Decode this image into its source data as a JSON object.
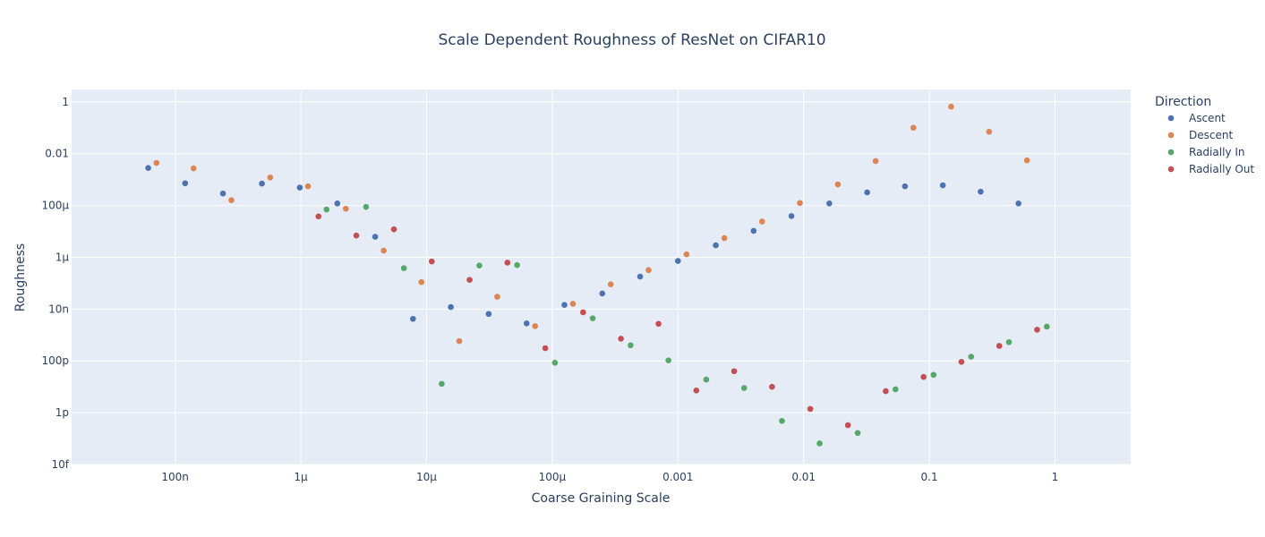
{
  "chart_data": {
    "type": "scatter",
    "title": "Scale Dependent Roughness of ResNet on CIFAR10",
    "xlabel": "Coarse Graining Scale",
    "ylabel": "Roughness",
    "xscale": "log",
    "yscale": "log",
    "xlim": [
      1.5e-08,
      4
    ],
    "ylim": [
      1e-14,
      3
    ],
    "x_ticks": [
      {
        "value": 1e-07,
        "label": "100n"
      },
      {
        "value": 1e-06,
        "label": "1µ"
      },
      {
        "value": 1e-05,
        "label": "10µ"
      },
      {
        "value": 0.0001,
        "label": "100µ"
      },
      {
        "value": 0.001,
        "label": "0.001"
      },
      {
        "value": 0.01,
        "label": "0.01"
      },
      {
        "value": 0.1,
        "label": "0.1"
      },
      {
        "value": 1,
        "label": "1"
      }
    ],
    "y_ticks": [
      {
        "value": 1,
        "label": "1"
      },
      {
        "value": 0.01,
        "label": "0.01"
      },
      {
        "value": 0.0001,
        "label": "100µ"
      },
      {
        "value": 1e-06,
        "label": "1µ"
      },
      {
        "value": 1e-08,
        "label": "10n"
      },
      {
        "value": 1e-10,
        "label": "100p"
      },
      {
        "value": 1e-12,
        "label": "1p"
      },
      {
        "value": 1e-14,
        "label": "10f"
      }
    ],
    "grid": true,
    "legend_title": "Direction",
    "legend_position": "right",
    "series": [
      {
        "name": "Ascent",
        "color": "#4c72b0",
        "points": [
          [
            6.1e-08,
            0.0028
          ],
          [
            1.2e-07,
            0.00072
          ],
          [
            2.4e-07,
            0.00029
          ],
          [
            4.9e-07,
            0.0007
          ],
          [
            9.8e-07,
            0.00049
          ],
          [
            1.95e-06,
            0.00012
          ],
          [
            3.9e-06,
            6.2e-06
          ],
          [
            7.8e-06,
            4.2e-09
          ],
          [
            1.56e-05,
            1.2e-08
          ],
          [
            3.12e-05,
            6.5e-09
          ],
          [
            6.25e-05,
            2.8e-09
          ],
          [
            0.000125,
            1.45e-08
          ],
          [
            0.00025,
            4e-08
          ],
          [
            0.0005,
            1.8e-07
          ],
          [
            0.001,
            7.2e-07
          ],
          [
            0.002,
            2.9e-06
          ],
          [
            0.004,
            1.05e-05
          ],
          [
            0.008,
            3.9e-05
          ],
          [
            0.016,
            0.00012
          ],
          [
            0.032,
            0.00032
          ],
          [
            0.064,
            0.00055
          ],
          [
            0.128,
            0.0006
          ],
          [
            0.256,
            0.00034
          ],
          [
            0.512,
            0.00012
          ]
        ]
      },
      {
        "name": "Descent",
        "color": "#dd8452",
        "points": [
          [
            7.1e-08,
            0.0044
          ],
          [
            1.4e-07,
            0.0027
          ],
          [
            2.8e-07,
            0.00016
          ],
          [
            5.7e-07,
            0.0012
          ],
          [
            1.14e-06,
            0.00055
          ],
          [
            2.28e-06,
            7.5e-05
          ],
          [
            4.56e-06,
            1.8e-06
          ],
          [
            9.1e-06,
            1.1e-07
          ],
          [
            1.82e-05,
            5.8e-10
          ],
          [
            3.65e-05,
            3e-08
          ],
          [
            7.3e-05,
            2.2e-09
          ],
          [
            0.000146,
            1.6e-08
          ],
          [
            0.000292,
            9e-08
          ],
          [
            0.000584,
            3.2e-07
          ],
          [
            0.00117,
            1.3e-06
          ],
          [
            0.00234,
            5.5e-06
          ],
          [
            0.00467,
            2.4e-05
          ],
          [
            0.00934,
            0.000125
          ],
          [
            0.0187,
            0.00065
          ],
          [
            0.0374,
            0.0052
          ],
          [
            0.0747,
            0.1
          ],
          [
            0.149,
            0.65
          ],
          [
            0.299,
            0.07
          ],
          [
            0.598,
            0.0055
          ]
        ]
      },
      {
        "name": "Radially In",
        "color": "#55a868",
        "points": [
          [
            1.6e-06,
            7e-05
          ],
          [
            3.3e-06,
            8.8e-05
          ],
          [
            6.6e-06,
            3.8e-07
          ],
          [
            1.32e-05,
            1.3e-11
          ],
          [
            2.63e-05,
            4.8e-07
          ],
          [
            5.25e-05,
            5e-07
          ],
          [
            0.000105,
            8.5e-11
          ],
          [
            0.00021,
            4.4e-09
          ],
          [
            0.00042,
            4e-10
          ],
          [
            0.00084,
            1.05e-10
          ],
          [
            0.00168,
            1.9e-11
          ],
          [
            0.00336,
            9e-12
          ],
          [
            0.00672,
            4.8e-13
          ],
          [
            0.0134,
            6.5e-14
          ],
          [
            0.0269,
            1.65e-13
          ],
          [
            0.0538,
            8e-12
          ],
          [
            0.108,
            2.9e-11
          ],
          [
            0.215,
            1.45e-10
          ],
          [
            0.43,
            5.3e-10
          ],
          [
            0.86,
            2.1e-09
          ]
        ]
      },
      {
        "name": "Radially Out",
        "color": "#c44e52",
        "points": [
          [
            1.38e-06,
            3.8e-05
          ],
          [
            2.76e-06,
            6.9e-06
          ],
          [
            5.5e-06,
            1.2e-05
          ],
          [
            1.1e-05,
            6.9e-07
          ],
          [
            2.2e-05,
            1.35e-07
          ],
          [
            4.4e-05,
            6.2e-07
          ],
          [
            8.8e-05,
            3.1e-10
          ],
          [
            0.000176,
            7.5e-09
          ],
          [
            0.000352,
            7.2e-10
          ],
          [
            0.0007,
            2.7e-09
          ],
          [
            0.0014,
            7.2e-12
          ],
          [
            0.0028,
            4e-11
          ],
          [
            0.0056,
            1e-11
          ],
          [
            0.0113,
            1.4e-12
          ],
          [
            0.0225,
            3.3e-13
          ],
          [
            0.045,
            6.8e-12
          ],
          [
            0.09,
            2.4e-11
          ],
          [
            0.18,
            9.2e-11
          ],
          [
            0.36,
            3.8e-10
          ],
          [
            0.72,
            1.6e-09
          ]
        ]
      }
    ]
  }
}
